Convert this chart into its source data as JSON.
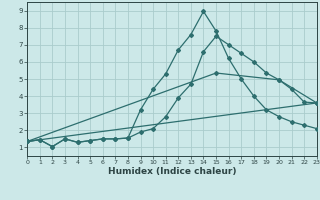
{
  "xlabel": "Humidex (Indice chaleur)",
  "xlim": [
    0,
    23
  ],
  "ylim": [
    0.5,
    9.5
  ],
  "bg_color": "#cce8e8",
  "line_color": "#2d6e6e",
  "grid_color": "#aacccc",
  "xticks": [
    0,
    1,
    2,
    3,
    4,
    5,
    6,
    7,
    8,
    9,
    10,
    11,
    12,
    13,
    14,
    15,
    16,
    17,
    18,
    19,
    20,
    21,
    22,
    23
  ],
  "yticks": [
    1,
    2,
    3,
    4,
    5,
    6,
    7,
    8,
    9
  ],
  "line1_x": [
    0,
    1,
    2,
    3,
    4,
    5,
    6,
    7,
    8,
    9,
    10,
    11,
    12,
    13,
    14,
    15,
    16,
    17,
    18,
    19,
    20,
    21,
    22,
    23
  ],
  "line1_y": [
    1.35,
    1.45,
    1.05,
    1.5,
    1.3,
    1.4,
    1.5,
    1.5,
    1.55,
    3.2,
    4.4,
    5.3,
    6.7,
    7.6,
    8.95,
    7.8,
    6.2,
    5.0,
    4.0,
    3.2,
    2.8,
    2.5,
    2.3,
    2.1
  ],
  "line2_x": [
    0,
    1,
    2,
    3,
    4,
    5,
    6,
    7,
    8,
    9,
    10,
    11,
    12,
    13,
    14,
    15,
    16,
    17,
    18,
    19,
    20,
    21,
    22,
    23
  ],
  "line2_y": [
    1.35,
    1.45,
    1.05,
    1.5,
    1.3,
    1.4,
    1.5,
    1.5,
    1.55,
    1.9,
    2.1,
    2.8,
    3.9,
    4.7,
    6.6,
    7.5,
    7.0,
    6.5,
    6.0,
    5.35,
    4.95,
    4.4,
    3.65,
    3.6
  ],
  "line3_x": [
    0,
    15,
    20,
    23
  ],
  "line3_y": [
    1.35,
    5.35,
    4.95,
    3.6
  ],
  "line4_x": [
    0,
    23
  ],
  "line4_y": [
    1.35,
    3.6
  ]
}
